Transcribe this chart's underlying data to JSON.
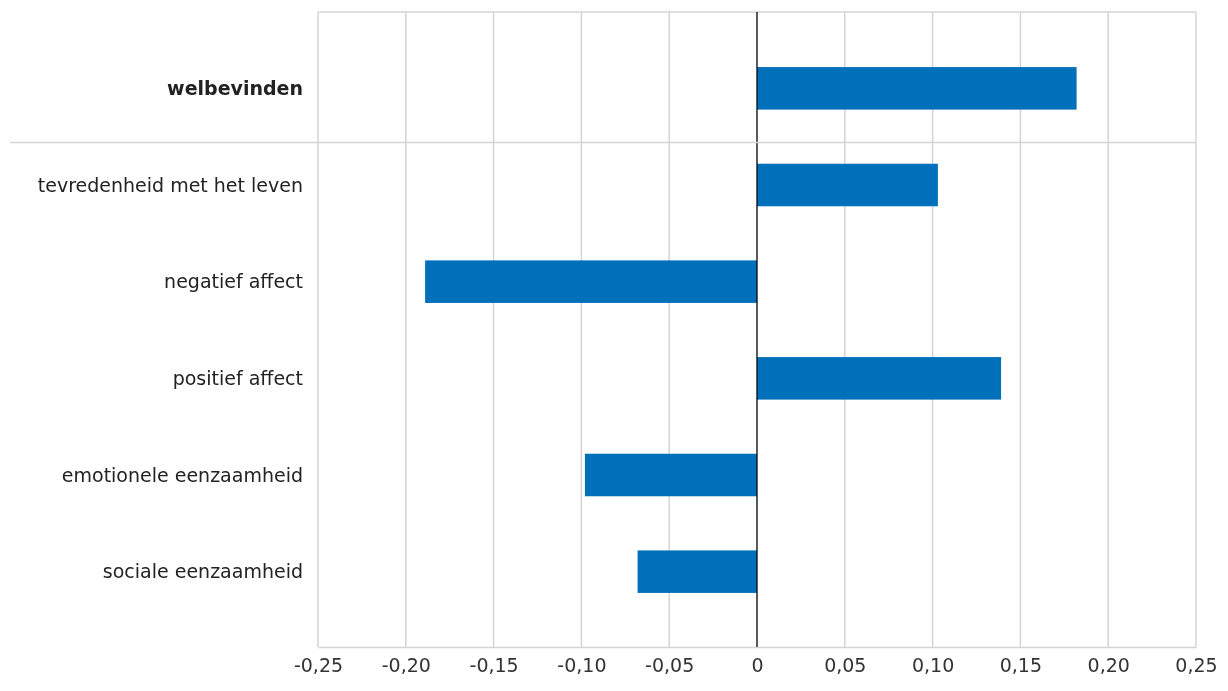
{
  "chart_data": {
    "type": "bar",
    "orientation": "horizontal",
    "categories": [
      "welbevinden",
      "tevredenheid met het leven",
      "negatief affect",
      "positief affect",
      "emotionele eenzaamheid",
      "sociale eenzaamheid"
    ],
    "values": [
      0.182,
      0.103,
      -0.189,
      0.139,
      -0.098,
      -0.068
    ],
    "color": "#0070bb",
    "xlim": [
      -0.25,
      0.25
    ],
    "xticks": [
      {
        "value": -0.25,
        "label": "-0,25"
      },
      {
        "value": -0.2,
        "label": "-0,20"
      },
      {
        "value": -0.15,
        "label": "-0,15"
      },
      {
        "value": -0.1,
        "label": "-0,10"
      },
      {
        "value": -0.05,
        "label": "-0,05"
      },
      0,
      {
        "value": 0.05,
        "label": "0,05"
      },
      {
        "value": 0.1,
        "label": "0,10"
      },
      {
        "value": 0.15,
        "label": "0,15"
      },
      {
        "value": 0.2,
        "label": "0,20"
      },
      {
        "value": 0.25,
        "label": "0,25"
      }
    ],
    "grid": "x"
  }
}
